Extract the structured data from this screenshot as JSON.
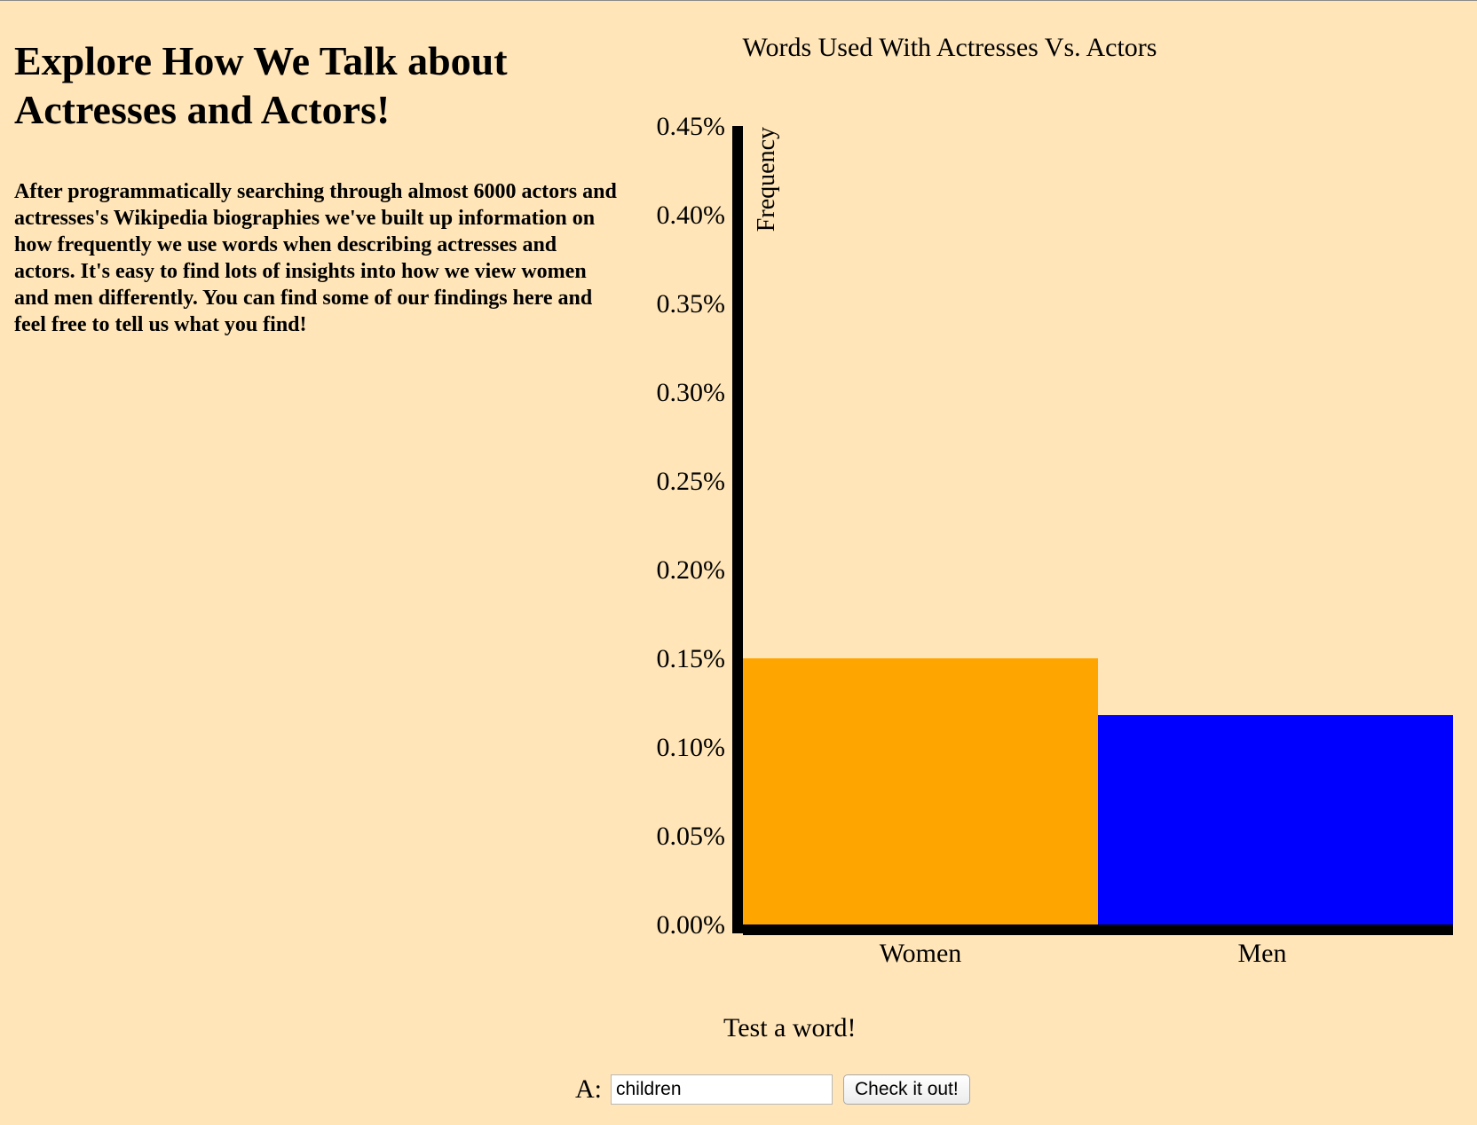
{
  "left": {
    "heading": "Explore How We Talk about Actresses and Actors!",
    "intro": "After programmatically searching through almost 6000 actors and actresses's Wikipedia biographies we've built up information on how frequently we use words when describing actresses and actors. It's easy to find lots of insights into how we view women and men differently. You can find some of our findings here and feel free to tell us what you find!"
  },
  "chart_data": {
    "type": "bar",
    "title": "Words Used With Actresses Vs. Actors",
    "ylabel": "Frequency",
    "xlabel": "",
    "categories": [
      "Women",
      "Men"
    ],
    "values": [
      0.15,
      0.118
    ],
    "ylim": [
      0,
      0.45
    ],
    "yticks": [
      0.0,
      0.05,
      0.1,
      0.15,
      0.2,
      0.25,
      0.3,
      0.35,
      0.4,
      0.45
    ],
    "ytick_labels": [
      "0.00%",
      "0.05%",
      "0.10%",
      "0.15%",
      "0.20%",
      "0.25%",
      "0.30%",
      "0.35%",
      "0.40%",
      "0.45%"
    ],
    "unit": "%",
    "colors": [
      "#ffa500",
      "#0000ff"
    ],
    "grid": false,
    "legend": "none"
  },
  "form": {
    "heading": "Test a word!",
    "input_label": "A:",
    "input_value": "children",
    "button_label": "Check it out!"
  }
}
